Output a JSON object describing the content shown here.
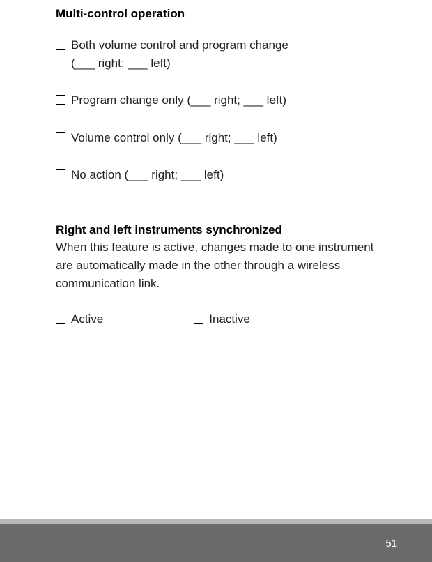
{
  "section1": {
    "heading": "Multi-control operation",
    "options": [
      {
        "line1": "Both volume control and program change",
        "line2": "(___ right; ___ left)"
      },
      {
        "line1": "Program change only (___ right; ___ left)"
      },
      {
        "line1": "Volume control only (___ right; ___ left)"
      },
      {
        "line1": "No action (___ right; ___ left)"
      }
    ]
  },
  "section2": {
    "heading": "Right and left instruments synchronized",
    "description": "When this feature is active, changes made to one instrument are automatically made in the other through a wireless communication link.",
    "options": [
      {
        "label": "Active"
      },
      {
        "label": "Inactive"
      }
    ]
  },
  "pageNumber": "51"
}
